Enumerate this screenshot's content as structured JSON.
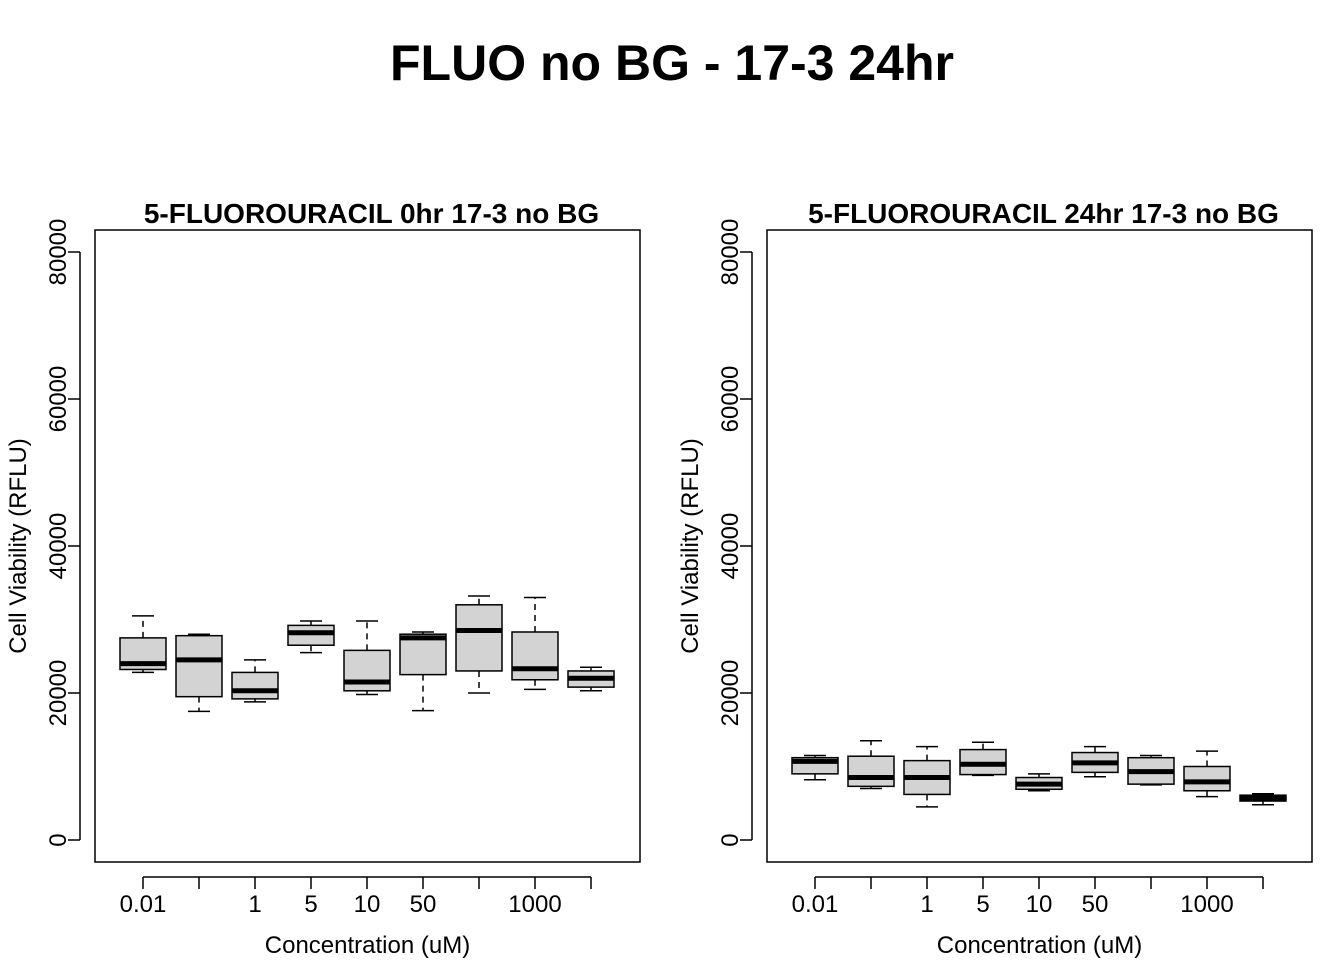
{
  "page_title": "FLUO no BG - 17-3 24hr",
  "colors": {
    "box_fill": "#d3d3d3",
    "stroke": "#000000",
    "background": "#ffffff"
  },
  "chart_data": [
    {
      "type": "box",
      "title": "5-FLUOROURACIL 0hr 17-3 no BG",
      "xlabel": "Concentration (uM)",
      "ylabel": "Cell Viability (RFLU)",
      "ylim": [
        0,
        80000
      ],
      "yticks": [
        0,
        20000,
        40000,
        60000,
        80000
      ],
      "ytick_labels": [
        "0",
        "20000",
        "40000",
        "60000",
        "80000"
      ],
      "categories": [
        "0.01",
        "",
        "1",
        "5",
        "10",
        "50",
        "",
        "1000",
        ""
      ],
      "boxes": [
        {
          "whisker_low": 22800,
          "q1": 23200,
          "median": 24000,
          "q3": 27500,
          "whisker_high": 30500
        },
        {
          "whisker_low": 17500,
          "q1": 19500,
          "median": 24500,
          "q3": 27800,
          "whisker_high": 28000
        },
        {
          "whisker_low": 18800,
          "q1": 19200,
          "median": 20300,
          "q3": 22800,
          "whisker_high": 24500
        },
        {
          "whisker_low": 25500,
          "q1": 26500,
          "median": 28200,
          "q3": 29200,
          "whisker_high": 29800
        },
        {
          "whisker_low": 19800,
          "q1": 20300,
          "median": 21500,
          "q3": 25800,
          "whisker_high": 29800
        },
        {
          "whisker_low": 17600,
          "q1": 22500,
          "median": 27500,
          "q3": 28000,
          "whisker_high": 28300
        },
        {
          "whisker_low": 20000,
          "q1": 23000,
          "median": 28500,
          "q3": 32000,
          "whisker_high": 33200
        },
        {
          "whisker_low": 20500,
          "q1": 21800,
          "median": 23300,
          "q3": 28300,
          "whisker_high": 33000
        },
        {
          "whisker_low": 20300,
          "q1": 20800,
          "median": 22000,
          "q3": 23000,
          "whisker_high": 23500
        }
      ]
    },
    {
      "type": "box",
      "title": "5-FLUOROURACIL 24hr 17-3 no BG",
      "xlabel": "Concentration (uM)",
      "ylabel": "Cell Viability (RFLU)",
      "ylim": [
        0,
        80000
      ],
      "yticks": [
        0,
        20000,
        40000,
        60000,
        80000
      ],
      "ytick_labels": [
        "0",
        "20000",
        "40000",
        "60000",
        "80000"
      ],
      "categories": [
        "0.01",
        "",
        "1",
        "5",
        "10",
        "50",
        "",
        "1000",
        ""
      ],
      "boxes": [
        {
          "whisker_low": 8200,
          "q1": 9000,
          "median": 10700,
          "q3": 11200,
          "whisker_high": 11500
        },
        {
          "whisker_low": 7000,
          "q1": 7300,
          "median": 8500,
          "q3": 11400,
          "whisker_high": 13500
        },
        {
          "whisker_low": 4500,
          "q1": 6200,
          "median": 8500,
          "q3": 10800,
          "whisker_high": 12700
        },
        {
          "whisker_low": 8800,
          "q1": 8900,
          "median": 10300,
          "q3": 12300,
          "whisker_high": 13300
        },
        {
          "whisker_low": 6700,
          "q1": 6900,
          "median": 7600,
          "q3": 8500,
          "whisker_high": 9000
        },
        {
          "whisker_low": 8600,
          "q1": 9200,
          "median": 10500,
          "q3": 11900,
          "whisker_high": 12700
        },
        {
          "whisker_low": 7500,
          "q1": 7600,
          "median": 9300,
          "q3": 11200,
          "whisker_high": 11500
        },
        {
          "whisker_low": 5900,
          "q1": 6700,
          "median": 7900,
          "q3": 10000,
          "whisker_high": 12100
        },
        {
          "whisker_low": 4800,
          "q1": 5300,
          "median": 5700,
          "q3": 6100,
          "whisker_high": 6300
        }
      ]
    }
  ]
}
